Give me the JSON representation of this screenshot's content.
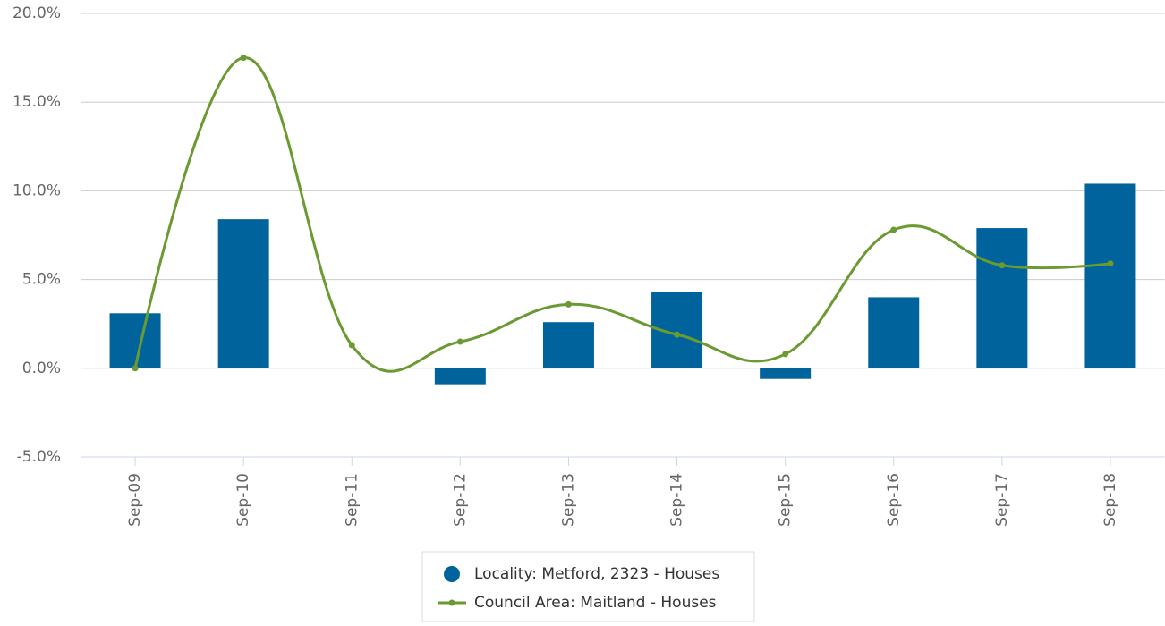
{
  "chart_data": {
    "type": "bar_line",
    "categories": [
      "Sep-09",
      "Sep-10",
      "Sep-11",
      "Sep-12",
      "Sep-13",
      "Sep-14",
      "Sep-15",
      "Sep-16",
      "Sep-17",
      "Sep-18"
    ],
    "series": [
      {
        "name": "Locality: Metford, 2323 - Houses",
        "type": "bar",
        "color": "#00639b",
        "values": [
          3.1,
          8.4,
          null,
          -0.9,
          2.6,
          4.3,
          -0.6,
          4.0,
          7.9,
          10.4
        ]
      },
      {
        "name": "Council Area: Maitland - Houses",
        "type": "spline",
        "color": "#6a9a31",
        "values": [
          0.0,
          17.5,
          1.3,
          1.5,
          3.6,
          1.9,
          0.8,
          7.8,
          5.8,
          5.9
        ]
      }
    ],
    "ylim": [
      -5,
      20
    ],
    "yticks": [
      {
        "value": -5,
        "label": "-5.0%"
      },
      {
        "value": 0,
        "label": "0.0%"
      },
      {
        "value": 5,
        "label": "5.0%"
      },
      {
        "value": 10,
        "label": "10.0%"
      },
      {
        "value": 15,
        "label": "15.0%"
      },
      {
        "value": 20,
        "label": "20.0%"
      }
    ],
    "grid": true,
    "legend": "bottom"
  }
}
